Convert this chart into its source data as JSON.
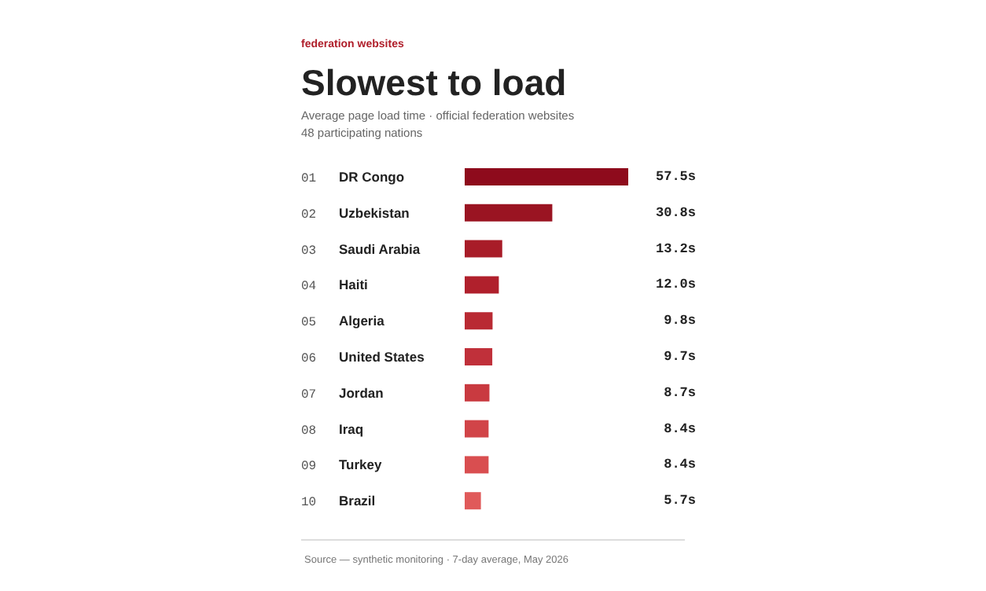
{
  "chart_data": {
    "type": "bar",
    "orientation": "horizontal",
    "title": "Slowest to load",
    "subtitle": "Average page load time · official federation websites\n48 participating nations",
    "categories": [
      "01 DR Congo",
      "02 Uzbekistan",
      "03 Saudi Arabia",
      "04 Haiti",
      "05 Algeria",
      "06 United States",
      "07 Jordan",
      "08 Iraq",
      "09 Turkey",
      "10 Brazil"
    ],
    "values": [
      57.5,
      30.8,
      13.2,
      12.0,
      9.8,
      9.7,
      8.7,
      8.4,
      8.4,
      5.7
    ],
    "value_labels": [
      "57.5s",
      "30.8s",
      "13.2s",
      "12.0s",
      "9.8s",
      "9.7s",
      "8.7s",
      "8.4s",
      "8.4s",
      "5.7s"
    ],
    "colors": [
      "#8e0b1c",
      "#9a1422",
      "#a81c28",
      "#b0202c",
      "#b92a33",
      "#c0303a",
      "#c93a40",
      "#d14448",
      "#d94e50",
      "#e05a5a"
    ],
    "annotations": [
      "federation websites",
      "Source — synthetic monitoring · 7-day average, May 2026"
    ],
    "data_labels": false
  }
}
